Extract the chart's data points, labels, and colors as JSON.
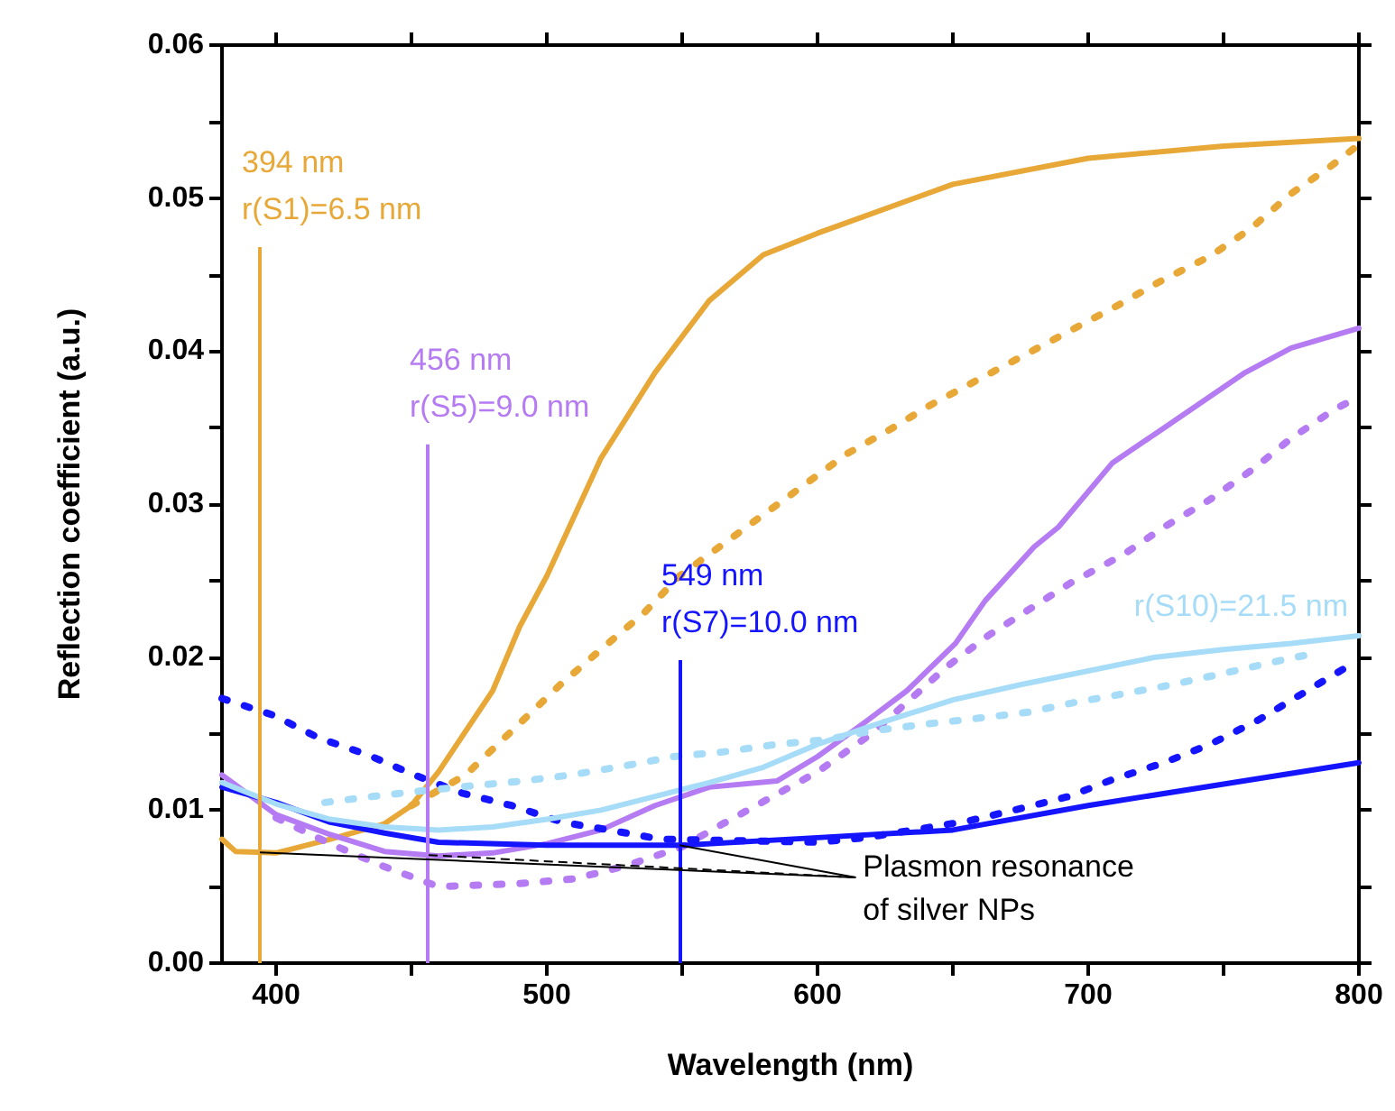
{
  "chart_data": {
    "type": "line",
    "xlabel": "Wavelength (nm)",
    "ylabel": "Reflection coefficient (a.u.)",
    "xlim": [
      380,
      800
    ],
    "ylim": [
      0,
      0.06
    ],
    "xticks": [
      400,
      {
        "value": 450,
        "label": null
      },
      500,
      {
        "value": 550,
        "label": null
      },
      600,
      {
        "value": 650,
        "label": null
      },
      700,
      {
        "value": 750,
        "label": null
      },
      800
    ],
    "yticks": [
      {
        "value": 0,
        "label": "0.00"
      },
      {
        "value": 0.005,
        "label": null
      },
      {
        "value": 0.01,
        "label": "0.01"
      },
      {
        "value": 0.015,
        "label": null
      },
      {
        "value": 0.02,
        "label": "0.02"
      },
      {
        "value": 0.025,
        "label": null
      },
      {
        "value": 0.03,
        "label": "0.03"
      },
      {
        "value": 0.035,
        "label": null
      },
      {
        "value": 0.04,
        "label": "0.04"
      },
      {
        "value": 0.045,
        "label": null
      },
      {
        "value": 0.05,
        "label": "0.05"
      },
      {
        "value": 0.055,
        "label": null
      },
      {
        "value": 0.06,
        "label": "0.06"
      }
    ],
    "grid": false,
    "legend": false,
    "marker": "none",
    "series": [
      {
        "color": "#e8a838",
        "line_style": "solid",
        "x": [
          380,
          385,
          400,
          420,
          440,
          450,
          460,
          480,
          490,
          500,
          520,
          540,
          560,
          580,
          600,
          650,
          700,
          750,
          800
        ],
        "values": [
          0.0081,
          0.0073,
          0.0072,
          0.0081,
          0.0091,
          0.0103,
          0.0125,
          0.0178,
          0.022,
          0.0253,
          0.033,
          0.0386,
          0.0433,
          0.0463,
          0.0477,
          0.0509,
          0.0526,
          0.0534,
          0.0539
        ]
      },
      {
        "color": "#e8a838",
        "line_style": "dotted",
        "x": [
          450,
          470,
          505,
          520,
          536,
          549,
          597,
          611,
          627,
          642,
          659,
          676,
          693,
          710,
          726,
          745,
          760,
          775,
          789,
          800
        ],
        "values": [
          0.0103,
          0.0123,
          0.0182,
          0.0205,
          0.0229,
          0.0253,
          0.0315,
          0.0333,
          0.0349,
          0.0365,
          0.0381,
          0.0397,
          0.0413,
          0.0429,
          0.0445,
          0.0462,
          0.048,
          0.0503,
          0.052,
          0.0535
        ]
      },
      {
        "color": "#b57bf2",
        "line_style": "solid",
        "x": [
          380,
          400,
          420,
          440,
          460,
          480,
          500,
          520,
          540,
          560,
          585,
          600,
          618,
          633,
          651,
          662,
          680,
          689,
          709,
          729,
          758,
          775,
          800
        ],
        "values": [
          0.0123,
          0.0097,
          0.0084,
          0.0073,
          0.007,
          0.0072,
          0.0078,
          0.0087,
          0.0103,
          0.0115,
          0.0119,
          0.0135,
          0.0158,
          0.0178,
          0.0209,
          0.0237,
          0.0272,
          0.0285,
          0.0327,
          0.0351,
          0.0386,
          0.0402,
          0.0415
        ]
      },
      {
        "color": "#b57bf2",
        "line_style": "dotted",
        "x": [
          400,
          420,
          440,
          460,
          490,
          510,
          530,
          550,
          565,
          600,
          620,
          648,
          663,
          694,
          713,
          728,
          745,
          761,
          775,
          791,
          800
        ],
        "values": [
          0.0095,
          0.0078,
          0.0063,
          0.005,
          0.0052,
          0.0055,
          0.0064,
          0.0076,
          0.0091,
          0.0125,
          0.015,
          0.0194,
          0.0214,
          0.0249,
          0.0267,
          0.0285,
          0.0303,
          0.0323,
          0.0343,
          0.0362,
          0.037
        ]
      },
      {
        "color": "#1414ff",
        "line_style": "solid",
        "x": [
          380,
          400,
          420,
          440,
          460,
          500,
          550,
          600,
          650,
          700,
          750,
          800
        ],
        "values": [
          0.0115,
          0.0105,
          0.0092,
          0.0085,
          0.0079,
          0.0077,
          0.0077,
          0.0082,
          0.0087,
          0.0103,
          0.0117,
          0.0131
        ]
      },
      {
        "color": "#1414ff",
        "line_style": "dotted",
        "x": [
          380,
          399,
          416,
          434,
          451,
          469,
          487,
          506,
          523,
          542,
          600,
          618,
          656,
          675,
          693,
          709,
          728,
          745,
          763,
          778,
          795
        ],
        "values": [
          0.0173,
          0.0162,
          0.0147,
          0.0136,
          0.0123,
          0.0111,
          0.0103,
          0.0092,
          0.0087,
          0.0081,
          0.0079,
          0.0082,
          0.0093,
          0.0101,
          0.0109,
          0.012,
          0.0131,
          0.0143,
          0.0159,
          0.0175,
          0.0193
        ]
      },
      {
        "name": "r(S10)=21.5 nm",
        "color": "#a6dcf7",
        "line_style": "solid",
        "x": [
          380,
          400,
          420,
          440,
          460,
          480,
          500,
          520,
          540,
          560,
          580,
          600,
          625,
          650,
          675,
          700,
          725,
          750,
          775,
          800
        ],
        "values": [
          0.0118,
          0.0104,
          0.0094,
          0.0089,
          0.0087,
          0.0089,
          0.0094,
          0.01,
          0.0109,
          0.0118,
          0.0128,
          0.0143,
          0.0158,
          0.0172,
          0.0182,
          0.0191,
          0.02,
          0.0205,
          0.0209,
          0.0214
        ]
      },
      {
        "color": "#a6dcf7",
        "line_style": "dotted",
        "x": [
          418,
          436,
          456,
          473,
          491,
          509,
          529,
          547,
          565,
          585,
          603,
          621,
          639,
          659,
          678,
          694,
          713,
          731,
          749,
          769,
          785
        ],
        "values": [
          0.0105,
          0.0109,
          0.0113,
          0.0116,
          0.0119,
          0.0123,
          0.0129,
          0.0135,
          0.0138,
          0.0143,
          0.0146,
          0.0152,
          0.0156,
          0.016,
          0.0164,
          0.017,
          0.0176,
          0.0182,
          0.0189,
          0.0197,
          0.0203
        ]
      }
    ],
    "ref_lines": [
      {
        "axis": "x",
        "value": 394,
        "label": "394 nm\nr(S1)=6.5 nm",
        "color": "#e8a838"
      },
      {
        "axis": "x",
        "value": 456,
        "label": "456 nm\nr(S5)=9.0 nm",
        "color": "#b57bf2"
      },
      {
        "axis": "x",
        "value": 549,
        "label": "549 nm\nr(S7)=10.0 nm",
        "color": "#1414ff"
      }
    ],
    "annotations": [
      {
        "text": "Plasmon resonance\nof silver NPs",
        "x": 549,
        "y": 0.0077
      }
    ]
  }
}
